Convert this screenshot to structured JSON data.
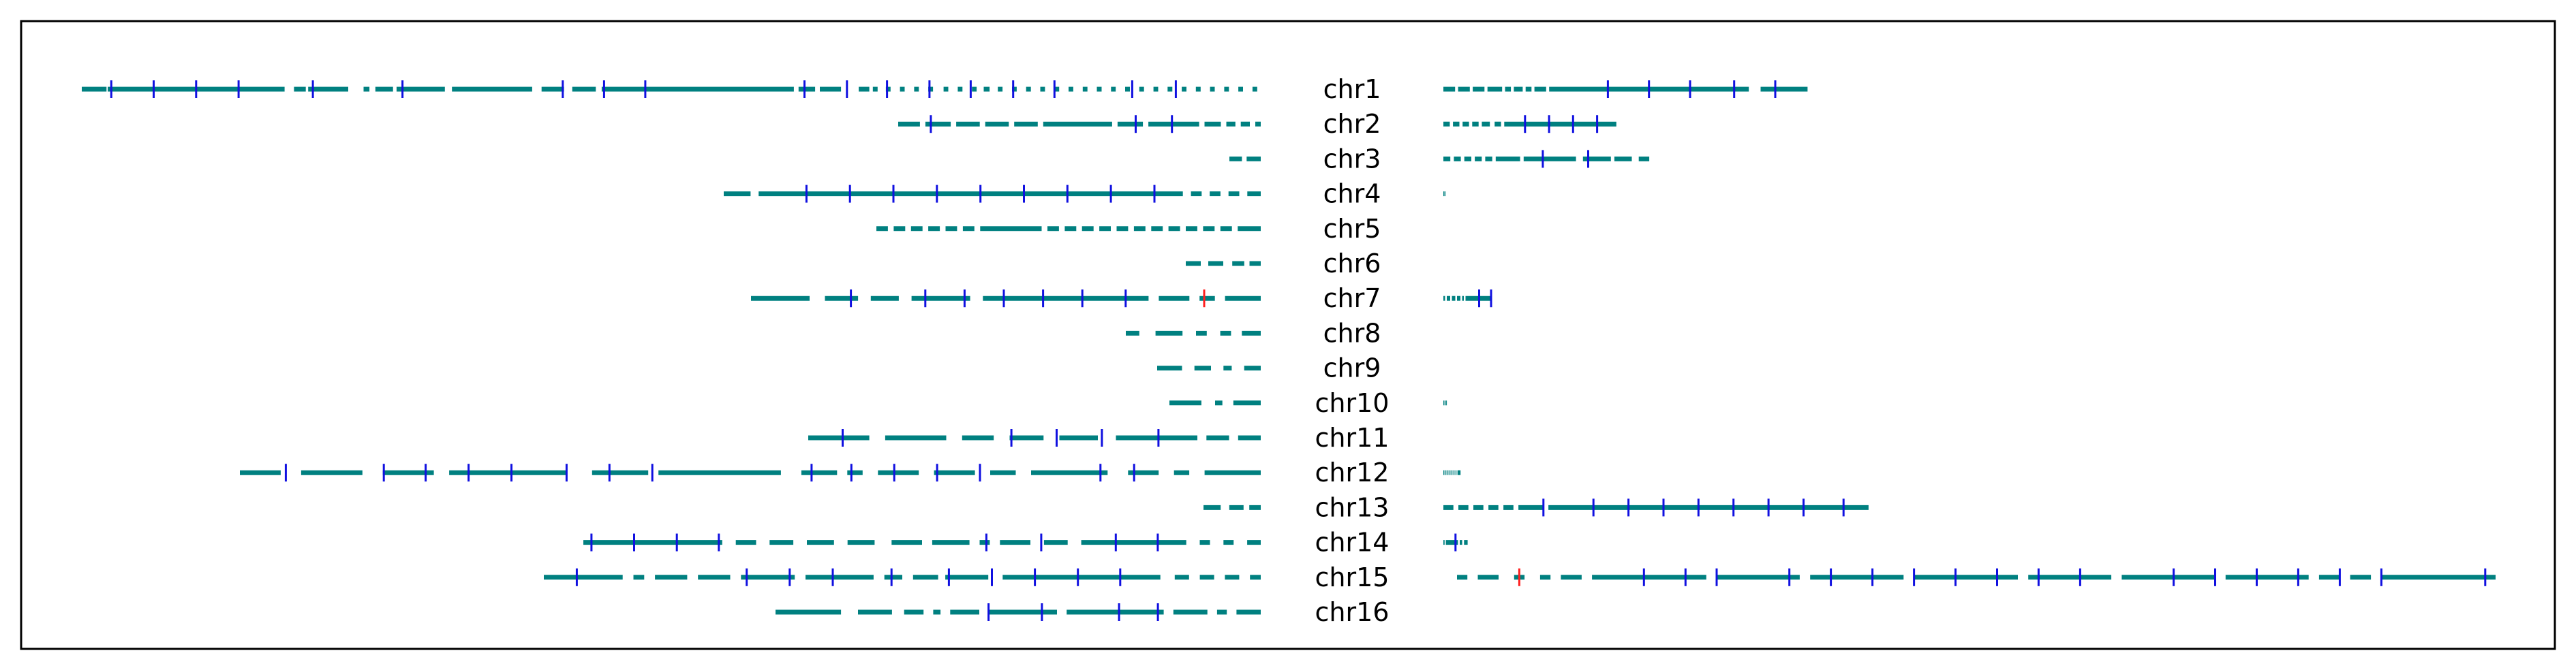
{
  "colors": {
    "segment": "#008080",
    "marker_blue": "#1010e0",
    "marker_red": "#ff2020",
    "frame": "#000000"
  },
  "chromosomes": [
    {
      "label": "chr1",
      "left": [
        [
          0,
          0.021
        ],
        [
          0.022,
          0.172
        ],
        [
          0.18,
          0.19
        ],
        [
          0.192,
          0.226
        ],
        [
          0.239,
          0.244
        ],
        [
          0.249,
          0.264
        ],
        [
          0.267,
          0.308
        ],
        [
          0.314,
          0.382
        ],
        [
          0.39,
          0.409
        ],
        [
          0.416,
          0.436
        ],
        [
          0.441,
          0.604
        ],
        [
          0.608,
          0.622
        ],
        [
          0.626,
          0.644
        ],
        [
          0.659,
          0.668
        ],
        [
          0.671,
          0.675
        ],
        [
          0.682,
          0.686
        ],
        [
          0.694,
          0.698
        ],
        [
          0.706,
          0.71
        ],
        [
          0.718,
          0.722
        ],
        [
          0.731,
          0.735
        ],
        [
          0.743,
          0.747
        ],
        [
          0.755,
          0.759
        ],
        [
          0.765,
          0.77
        ],
        [
          0.777,
          0.781
        ],
        [
          0.789,
          0.793
        ],
        [
          0.801,
          0.805
        ],
        [
          0.813,
          0.817
        ],
        [
          0.825,
          0.829
        ],
        [
          0.837,
          0.841
        ],
        [
          0.849,
          0.853
        ],
        [
          0.861,
          0.865
        ],
        [
          0.873,
          0.877
        ],
        [
          0.885,
          0.889
        ],
        [
          0.897,
          0.901
        ],
        [
          0.909,
          0.913
        ],
        [
          0.921,
          0.925
        ],
        [
          0.933,
          0.937
        ],
        [
          0.945,
          0.949
        ],
        [
          0.957,
          0.961
        ],
        [
          0.969,
          0.973
        ],
        [
          0.981,
          0.985
        ],
        [
          0.993,
          0.997
        ]
      ],
      "left_markers": [
        0.025,
        0.061,
        0.097,
        0.133,
        0.196,
        0.272,
        0.408,
        0.443,
        0.478,
        0.613,
        0.649,
        0.683,
        0.719,
        0.754,
        0.79,
        0.825,
        0.891,
        0.928
      ],
      "right": [
        [
          0,
          0.02
        ],
        [
          0.025,
          0.045
        ],
        [
          0.05,
          0.07
        ],
        [
          0.075,
          0.1
        ],
        [
          0.105,
          0.115
        ],
        [
          0.12,
          0.135
        ],
        [
          0.14,
          0.15
        ],
        [
          0.155,
          0.175
        ],
        [
          0.18,
          0.52
        ],
        [
          0.54,
          0.62
        ]
      ],
      "right_markers": [
        0.28,
        0.35,
        0.42,
        0.495
      ],
      "right_markers2": [
        0.565
      ]
    },
    {
      "label": "chr2",
      "left": [
        [
          0,
          0.06
        ],
        [
          0.075,
          0.145
        ],
        [
          0.16,
          0.225
        ],
        [
          0.24,
          0.305
        ],
        [
          0.32,
          0.385
        ],
        [
          0.4,
          0.59
        ],
        [
          0.605,
          0.675
        ],
        [
          0.69,
          0.83
        ],
        [
          0.845,
          0.89
        ],
        [
          0.905,
          0.93
        ],
        [
          0.945,
          0.97
        ],
        [
          0.985,
          1.0
        ]
      ],
      "left_markers": [
        0.09,
        0.655,
        0.755
      ],
      "right": [
        [
          0,
          0.02
        ],
        [
          0.03,
          0.05
        ],
        [
          0.06,
          0.08
        ],
        [
          0.09,
          0.11
        ],
        [
          0.12,
          0.145
        ],
        [
          0.16,
          0.18
        ],
        [
          0.19,
          0.54
        ]
      ],
      "right_markers": [
        0.255,
        0.33,
        0.405,
        0.48
      ]
    },
    {
      "label": "chr3",
      "left": [
        [
          0.0,
          0.4
        ],
        [
          0.55,
          1.0
        ]
      ],
      "left_markers": [],
      "right": [
        [
          0,
          0.02
        ],
        [
          0.03,
          0.05
        ],
        [
          0.06,
          0.08
        ],
        [
          0.09,
          0.11
        ],
        [
          0.12,
          0.14
        ],
        [
          0.15,
          0.22
        ],
        [
          0.23,
          0.38
        ],
        [
          0.4,
          0.48
        ],
        [
          0.49,
          0.54
        ],
        [
          0.56,
          0.59
        ]
      ],
      "right_markers": [
        0.285,
        0.415
      ]
    },
    {
      "label": "chr4",
      "left": [
        [
          0,
          0.05
        ],
        [
          0.065,
          0.855
        ],
        [
          0.87,
          0.89
        ],
        [
          0.905,
          0.925
        ],
        [
          0.94,
          0.96
        ],
        [
          0.975,
          1.0
        ]
      ],
      "left_markers": [
        0.154,
        0.235,
        0.316,
        0.397,
        0.478,
        0.559,
        0.64,
        0.721,
        0.802
      ],
      "right": [
        [
          0,
          0.03
        ],
        [
          0.04,
          0.06
        ]
      ],
      "right_markers": []
    },
    {
      "label": "chr5",
      "left": [
        [
          0,
          0.03
        ],
        [
          0.045,
          0.075
        ],
        [
          0.09,
          0.12
        ],
        [
          0.135,
          0.165
        ],
        [
          0.18,
          0.21
        ],
        [
          0.225,
          0.255
        ],
        [
          0.27,
          0.43
        ],
        [
          0.445,
          0.475
        ],
        [
          0.49,
          0.52
        ],
        [
          0.535,
          0.565
        ],
        [
          0.58,
          0.61
        ],
        [
          0.625,
          0.655
        ],
        [
          0.67,
          0.7
        ],
        [
          0.715,
          0.745
        ],
        [
          0.76,
          0.79
        ],
        [
          0.805,
          0.835
        ],
        [
          0.85,
          0.88
        ],
        [
          0.895,
          0.925
        ],
        [
          0.94,
          1.0
        ]
      ],
      "left_markers": []
    },
    {
      "label": "chr6",
      "left": [
        [
          0,
          0.2
        ],
        [
          0.3,
          0.5
        ],
        [
          0.62,
          0.78
        ],
        [
          0.85,
          1.0
        ]
      ],
      "left_markers": []
    },
    {
      "label": "chr7",
      "left": [
        [
          0,
          0.115
        ],
        [
          0.145,
          0.21
        ],
        [
          0.235,
          0.29
        ],
        [
          0.315,
          0.43
        ],
        [
          0.455,
          0.78
        ],
        [
          0.8,
          0.86
        ],
        [
          0.88,
          0.91
        ],
        [
          0.93,
          1.0
        ]
      ],
      "left_markers": [
        0.196,
        0.342,
        0.419,
        0.496,
        0.573,
        0.65,
        0.735
      ],
      "left_red": [
        0.889
      ],
      "right": [
        [
          0,
          0.01
        ],
        [
          0.02,
          0.04
        ],
        [
          0.05,
          0.07
        ],
        [
          0.08,
          0.1
        ],
        [
          0.11,
          0.12
        ],
        [
          0.13,
          0.28
        ]
      ],
      "right_markers": [
        0.21,
        0.28
      ]
    },
    {
      "label": "chr8",
      "left": [
        [
          0,
          0.1
        ],
        [
          0.22,
          0.42
        ],
        [
          0.52,
          0.6
        ],
        [
          0.7,
          0.78
        ],
        [
          0.86,
          1.0
        ]
      ],
      "left_markers": []
    },
    {
      "label": "chr9",
      "left": [
        [
          0,
          0.24
        ],
        [
          0.36,
          0.52
        ],
        [
          0.64,
          0.72
        ],
        [
          0.84,
          1.0
        ]
      ],
      "left_markers": []
    },
    {
      "label": "chr10",
      "left": [
        [
          0,
          0.35
        ],
        [
          0.5,
          0.58
        ],
        [
          0.7,
          1.0
        ]
      ],
      "left_markers": [],
      "right": [
        [
          0,
          0.02
        ],
        [
          0.03,
          0.05
        ],
        [
          0.06,
          0.075
        ]
      ],
      "right_markers": []
    },
    {
      "label": "chr11",
      "left": [
        [
          0,
          0.135
        ],
        [
          0.17,
          0.305
        ],
        [
          0.34,
          0.41
        ],
        [
          0.445,
          0.52
        ],
        [
          0.555,
          0.64
        ],
        [
          0.68,
          0.86
        ],
        [
          0.88,
          0.93
        ],
        [
          0.95,
          1.0
        ]
      ],
      "left_markers": [
        0.076,
        0.449,
        0.549,
        0.649,
        0.774
      ],
      "right": [],
      "right_markers": []
    },
    {
      "label": "chr12",
      "left": [
        [
          0,
          0.04
        ],
        [
          0.06,
          0.12
        ],
        [
          0.14,
          0.19
        ],
        [
          0.205,
          0.32
        ],
        [
          0.345,
          0.4
        ],
        [
          0.41,
          0.53
        ],
        [
          0.55,
          0.585
        ],
        [
          0.595,
          0.61
        ],
        [
          0.625,
          0.665
        ],
        [
          0.68,
          0.72
        ],
        [
          0.735,
          0.76
        ],
        [
          0.775,
          0.85
        ],
        [
          0.87,
          0.9
        ],
        [
          0.915,
          0.93
        ],
        [
          0.945,
          1.0
        ]
      ],
      "left_markers": [
        0.045,
        0.141,
        0.182,
        0.224,
        0.266,
        0.32,
        0.362,
        0.404,
        0.56,
        0.599,
        0.641,
        0.683,
        0.725,
        0.843,
        0.876
      ],
      "right": [
        [
          0,
          0.01
        ],
        [
          0.02,
          0.03
        ],
        [
          0.04,
          0.05
        ],
        [
          0.06,
          0.07
        ],
        [
          0.08,
          0.09
        ],
        [
          0.1,
          0.11
        ],
        [
          0.12,
          0.13
        ],
        [
          0.14,
          0.17
        ]
      ],
      "right_markers": []
    },
    {
      "label": "chr13",
      "left": [
        [
          0.0,
          0.3
        ],
        [
          0.45,
          0.7
        ],
        [
          0.8,
          1.0
        ]
      ],
      "left_markers": [],
      "right": [
        [
          0,
          0.02
        ],
        [
          0.03,
          0.05
        ],
        [
          0.06,
          0.08
        ],
        [
          0.09,
          0.11
        ],
        [
          0.12,
          0.14
        ],
        [
          0.15,
          0.2
        ],
        [
          0.21,
          0.85
        ]
      ],
      "right_markers": [
        0.2,
        0.3,
        0.37,
        0.44,
        0.51,
        0.58,
        0.65,
        0.72,
        0.8
      ]
    },
    {
      "label": "chr14",
      "left": [
        [
          0,
          0.205
        ],
        [
          0.225,
          0.255
        ],
        [
          0.275,
          0.31
        ],
        [
          0.33,
          0.37
        ],
        [
          0.39,
          0.43
        ],
        [
          0.455,
          0.5
        ],
        [
          0.515,
          0.57
        ],
        [
          0.585,
          0.6
        ],
        [
          0.615,
          0.66
        ],
        [
          0.68,
          0.715
        ],
        [
          0.735,
          0.89
        ],
        [
          0.91,
          0.925
        ],
        [
          0.945,
          0.96
        ],
        [
          0.98,
          1.0
        ]
      ],
      "left_markers": [
        0.012,
        0.075,
        0.138,
        0.2,
        0.595,
        0.676,
        0.786,
        0.848
      ],
      "right": [
        [
          0,
          0.01
        ],
        [
          0.02,
          0.12
        ],
        [
          0.135,
          0.155
        ],
        [
          0.17,
          0.2
        ]
      ],
      "right_markers": [
        0.1
      ]
    },
    {
      "label": "chr15",
      "left": [
        [
          0,
          0.11
        ],
        [
          0.125,
          0.14
        ],
        [
          0.155,
          0.2
        ],
        [
          0.215,
          0.26
        ],
        [
          0.275,
          0.35
        ],
        [
          0.365,
          0.46
        ],
        [
          0.475,
          0.5
        ],
        [
          0.515,
          0.55
        ],
        [
          0.56,
          0.62
        ],
        [
          0.64,
          0.86
        ],
        [
          0.88,
          0.9
        ],
        [
          0.915,
          0.935
        ],
        [
          0.95,
          0.97
        ],
        [
          0.985,
          1.0
        ]
      ],
      "left_markers": [
        0.046,
        0.283,
        0.343,
        0.403,
        0.485,
        0.565,
        0.625,
        0.685,
        0.745,
        0.804
      ],
      "right": [
        [
          0,
          0.01
        ],
        [
          0.02,
          0.04
        ],
        [
          0.055,
          0.065
        ],
        [
          0.08,
          0.09
        ],
        [
          0.1,
          0.12
        ],
        [
          0.13,
          0.24
        ],
        [
          0.25,
          0.33
        ],
        [
          0.34,
          0.43
        ],
        [
          0.44,
          0.54
        ],
        [
          0.55,
          0.63
        ],
        [
          0.64,
          0.73
        ],
        [
          0.74,
          0.82
        ],
        [
          0.83,
          0.85
        ],
        [
          0.86,
          0.88
        ],
        [
          0.89,
          1.0
        ]
      ],
      "right_markers": [
        0.18,
        0.22,
        0.25,
        0.32,
        0.36,
        0.4,
        0.44,
        0.48,
        0.52,
        0.56,
        0.6,
        0.69,
        0.73,
        0.77,
        0.81,
        0.85,
        0.89,
        0.99
      ],
      "right_red": [
        0.06
      ]
    },
    {
      "label": "chr16",
      "left": [
        [
          0,
          0.135
        ],
        [
          0.17,
          0.24
        ],
        [
          0.265,
          0.305
        ],
        [
          0.325,
          0.34
        ],
        [
          0.36,
          0.42
        ],
        [
          0.44,
          0.58
        ],
        [
          0.6,
          0.8
        ],
        [
          0.82,
          0.89
        ],
        [
          0.91,
          0.93
        ],
        [
          0.95,
          1.0
        ]
      ],
      "left_markers": [
        0.439,
        0.549,
        0.708,
        0.788
      ]
    }
  ]
}
